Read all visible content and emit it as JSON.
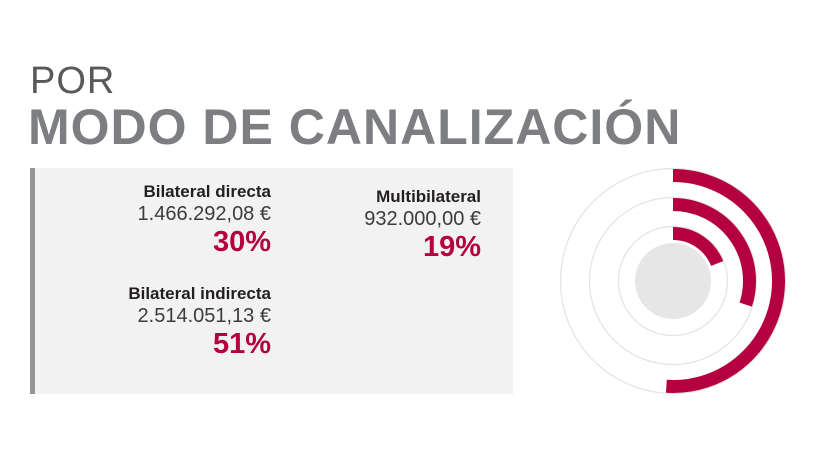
{
  "header": {
    "line1": "POR",
    "line2": "MODO DE CANALIZACIÓN"
  },
  "items": [
    {
      "name": "Bilateral directa",
      "amount": "1.466.292,08 €",
      "percent_label": "30%"
    },
    {
      "name": "Multibilateral",
      "amount": "932.000,00 €",
      "percent_label": "19%"
    },
    {
      "name": "Bilateral indirecta",
      "amount": "2.514.051,13 €",
      "percent_label": "51%"
    }
  ],
  "colors": {
    "accent": "#b5003f",
    "ring_guide": "#e3e3e4",
    "center": "#e6e6e7"
  },
  "chart_data": {
    "type": "radial-bar",
    "categories": [
      "Bilateral indirecta",
      "Bilateral directa",
      "Multibilateral"
    ],
    "values": [
      51,
      30,
      19
    ],
    "unit": "%",
    "max": 100
  }
}
